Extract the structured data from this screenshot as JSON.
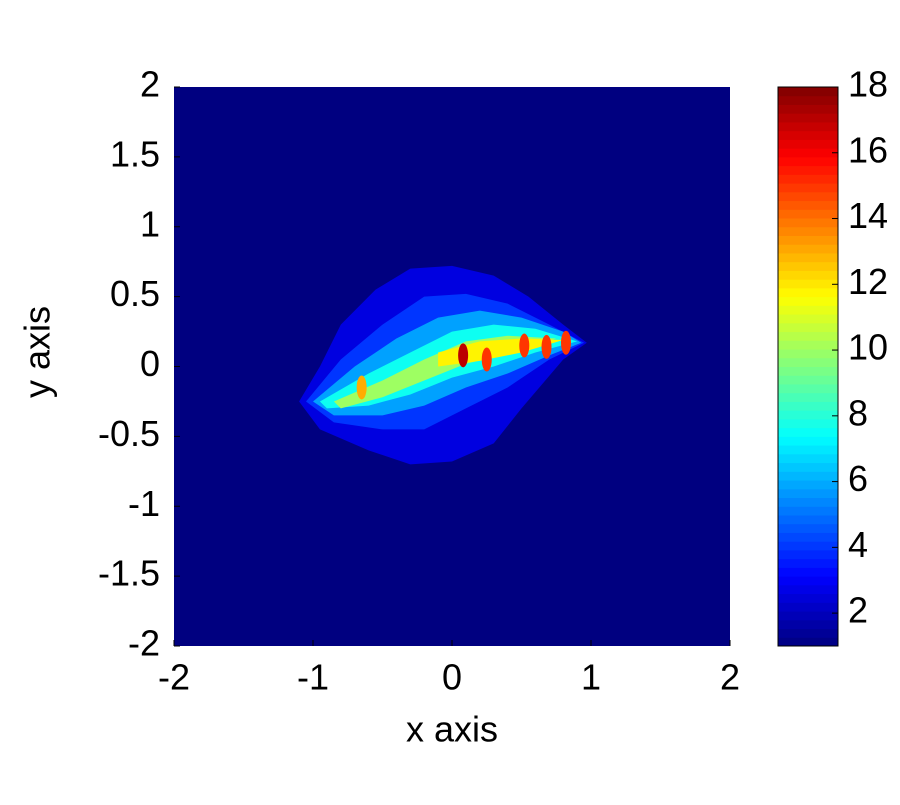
{
  "chart_data": {
    "type": "contour",
    "colormap": "jet",
    "xlabel": "x axis",
    "ylabel": "y axis",
    "xlim": [
      -2,
      2
    ],
    "ylim": [
      -2,
      2
    ],
    "xticks": [
      -2,
      -1,
      0,
      1,
      2
    ],
    "yticks": [
      -2,
      -1.5,
      -1,
      -0.5,
      0,
      0.5,
      1,
      1.5,
      2
    ],
    "clim": [
      1,
      18
    ],
    "cticks": [
      2,
      4,
      6,
      8,
      10,
      12,
      14,
      16,
      18
    ],
    "regions": [
      {
        "level": 2.6,
        "x": [
          -1.1,
          -0.95,
          -0.8,
          -0.55,
          -0.3,
          0,
          0.3,
          0.55,
          0.8,
          0.97,
          0.8,
          0.5,
          0.3,
          0,
          -0.3,
          -0.6,
          -0.95
        ],
        "y": [
          -0.25,
          0,
          0.3,
          0.55,
          0.7,
          0.72,
          0.65,
          0.5,
          0.3,
          0.17,
          0.05,
          -0.3,
          -0.55,
          -0.68,
          -0.7,
          -0.6,
          -0.45
        ]
      },
      {
        "level": 4,
        "x": [
          -1.05,
          -0.8,
          -0.5,
          -0.2,
          0.1,
          0.4,
          0.7,
          0.95,
          0.7,
          0.4,
          0.1,
          -0.2,
          -0.5,
          -0.85
        ],
        "y": [
          -0.25,
          0.05,
          0.3,
          0.5,
          0.52,
          0.45,
          0.3,
          0.17,
          0.05,
          -0.15,
          -0.3,
          -0.45,
          -0.45,
          -0.4
        ]
      },
      {
        "level": 5.8,
        "x": [
          -1,
          -0.7,
          -0.4,
          -0.1,
          0.2,
          0.5,
          0.8,
          0.93,
          0.7,
          0.4,
          0.1,
          -0.2,
          -0.5,
          -0.85
        ],
        "y": [
          -0.25,
          0,
          0.2,
          0.35,
          0.4,
          0.35,
          0.25,
          0.17,
          0.08,
          -0.05,
          -0.15,
          -0.28,
          -0.35,
          -0.35
        ]
      },
      {
        "level": 7.6,
        "x": [
          -0.95,
          -0.6,
          -0.3,
          0,
          0.3,
          0.6,
          0.9,
          0.6,
          0.3,
          0,
          -0.3,
          -0.6,
          -0.9
        ],
        "y": [
          -0.25,
          -0.05,
          0.1,
          0.25,
          0.3,
          0.27,
          0.18,
          0.1,
          0,
          -0.08,
          -0.2,
          -0.28,
          -0.3
        ]
      },
      {
        "level": 10,
        "x": [
          -0.85,
          -0.5,
          -0.2,
          0.1,
          0.4,
          0.75,
          0.45,
          0.1,
          -0.2,
          -0.5,
          -0.8
        ],
        "y": [
          -0.25,
          -0.1,
          0.05,
          0.18,
          0.22,
          0.2,
          0.1,
          0.02,
          -0.1,
          -0.22,
          -0.3
        ]
      },
      {
        "level": 11.8,
        "x": [
          -0.1,
          0.2,
          0.5,
          0.8,
          0.5,
          0.2,
          -0.1
        ],
        "y": [
          0.1,
          0.18,
          0.2,
          0.19,
          0.1,
          0.04,
          0
        ]
      }
    ],
    "peaks": [
      {
        "x": 0.08,
        "y": 0.08,
        "value": 17
      },
      {
        "x": 0.25,
        "y": 0.05,
        "value": 15
      },
      {
        "x": 0.52,
        "y": 0.15,
        "value": 15
      },
      {
        "x": 0.68,
        "y": 0.14,
        "value": 15
      },
      {
        "x": 0.82,
        "y": 0.17,
        "value": 15
      },
      {
        "x": -0.65,
        "y": -0.15,
        "value": 13
      }
    ]
  }
}
